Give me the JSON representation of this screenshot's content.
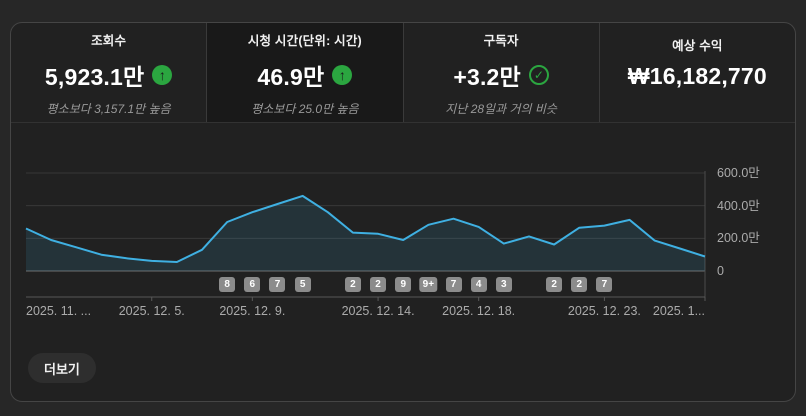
{
  "tabs": [
    {
      "label": "조회수",
      "value": "5,923.1만",
      "indicator": "up-arrow",
      "subtitle": "평소보다 3,157.1만 높음",
      "active": false
    },
    {
      "label": "시청 시간(단위: 시간)",
      "value": "46.9만",
      "indicator": "up-arrow",
      "subtitle": "평소보다 25.0만 높음",
      "active": true
    },
    {
      "label": "구독자",
      "value": "+3.2만",
      "indicator": "check-circle",
      "subtitle": "지난 28일과 거의 비슷",
      "active": false
    },
    {
      "label": "예상 수익",
      "value": "₩16,182,770",
      "indicator": "none",
      "subtitle": "",
      "active": false
    }
  ],
  "chart_data": {
    "type": "area",
    "unit": "만",
    "values": [
      260,
      190,
      145,
      100,
      78,
      62,
      55,
      130,
      300,
      360,
      410,
      460,
      360,
      235,
      228,
      190,
      283,
      320,
      270,
      168,
      212,
      162,
      265,
      278,
      313,
      186,
      138,
      89
    ],
    "ylim": [
      0,
      700
    ],
    "grid": true,
    "legend": false,
    "y_ticks": [
      {
        "value": 600,
        "label": "600.0만"
      },
      {
        "value": 400,
        "label": "400.0만"
      },
      {
        "value": 200,
        "label": "200.0만"
      },
      {
        "value": 0,
        "label": "0"
      }
    ],
    "x_ticks": [
      {
        "day": 0,
        "label": "2025. 11. ..."
      },
      {
        "day": 5,
        "label": "2025. 12. 5."
      },
      {
        "day": 9,
        "label": "2025. 12. 9."
      },
      {
        "day": 14,
        "label": "2025. 12. 14."
      },
      {
        "day": 18,
        "label": "2025. 12. 18."
      },
      {
        "day": 23,
        "label": "2025. 12. 23."
      },
      {
        "day": 27,
        "label": "2025. 1..."
      }
    ],
    "markers": [
      {
        "day": 8,
        "label": "8"
      },
      {
        "day": 9,
        "label": "6"
      },
      {
        "day": 10,
        "label": "7"
      },
      {
        "day": 11,
        "label": "5"
      },
      {
        "day": 13,
        "label": "2"
      },
      {
        "day": 14,
        "label": "2"
      },
      {
        "day": 15,
        "label": "9"
      },
      {
        "day": 16,
        "label": "9+"
      },
      {
        "day": 17,
        "label": "7"
      },
      {
        "day": 18,
        "label": "4"
      },
      {
        "day": 19,
        "label": "3"
      },
      {
        "day": 21,
        "label": "2"
      },
      {
        "day": 22,
        "label": "2"
      },
      {
        "day": 23,
        "label": "7"
      }
    ],
    "line_color": "#3fb0e2",
    "area_fill": "rgba(63,176,226,0.13)"
  },
  "icons": {
    "up_arrow_glyph": "↑",
    "check_glyph": "✓"
  },
  "colors": {
    "positive_green": "#2ba640",
    "badge_background": "#8c8c8c"
  },
  "more_button_label": "더보기"
}
